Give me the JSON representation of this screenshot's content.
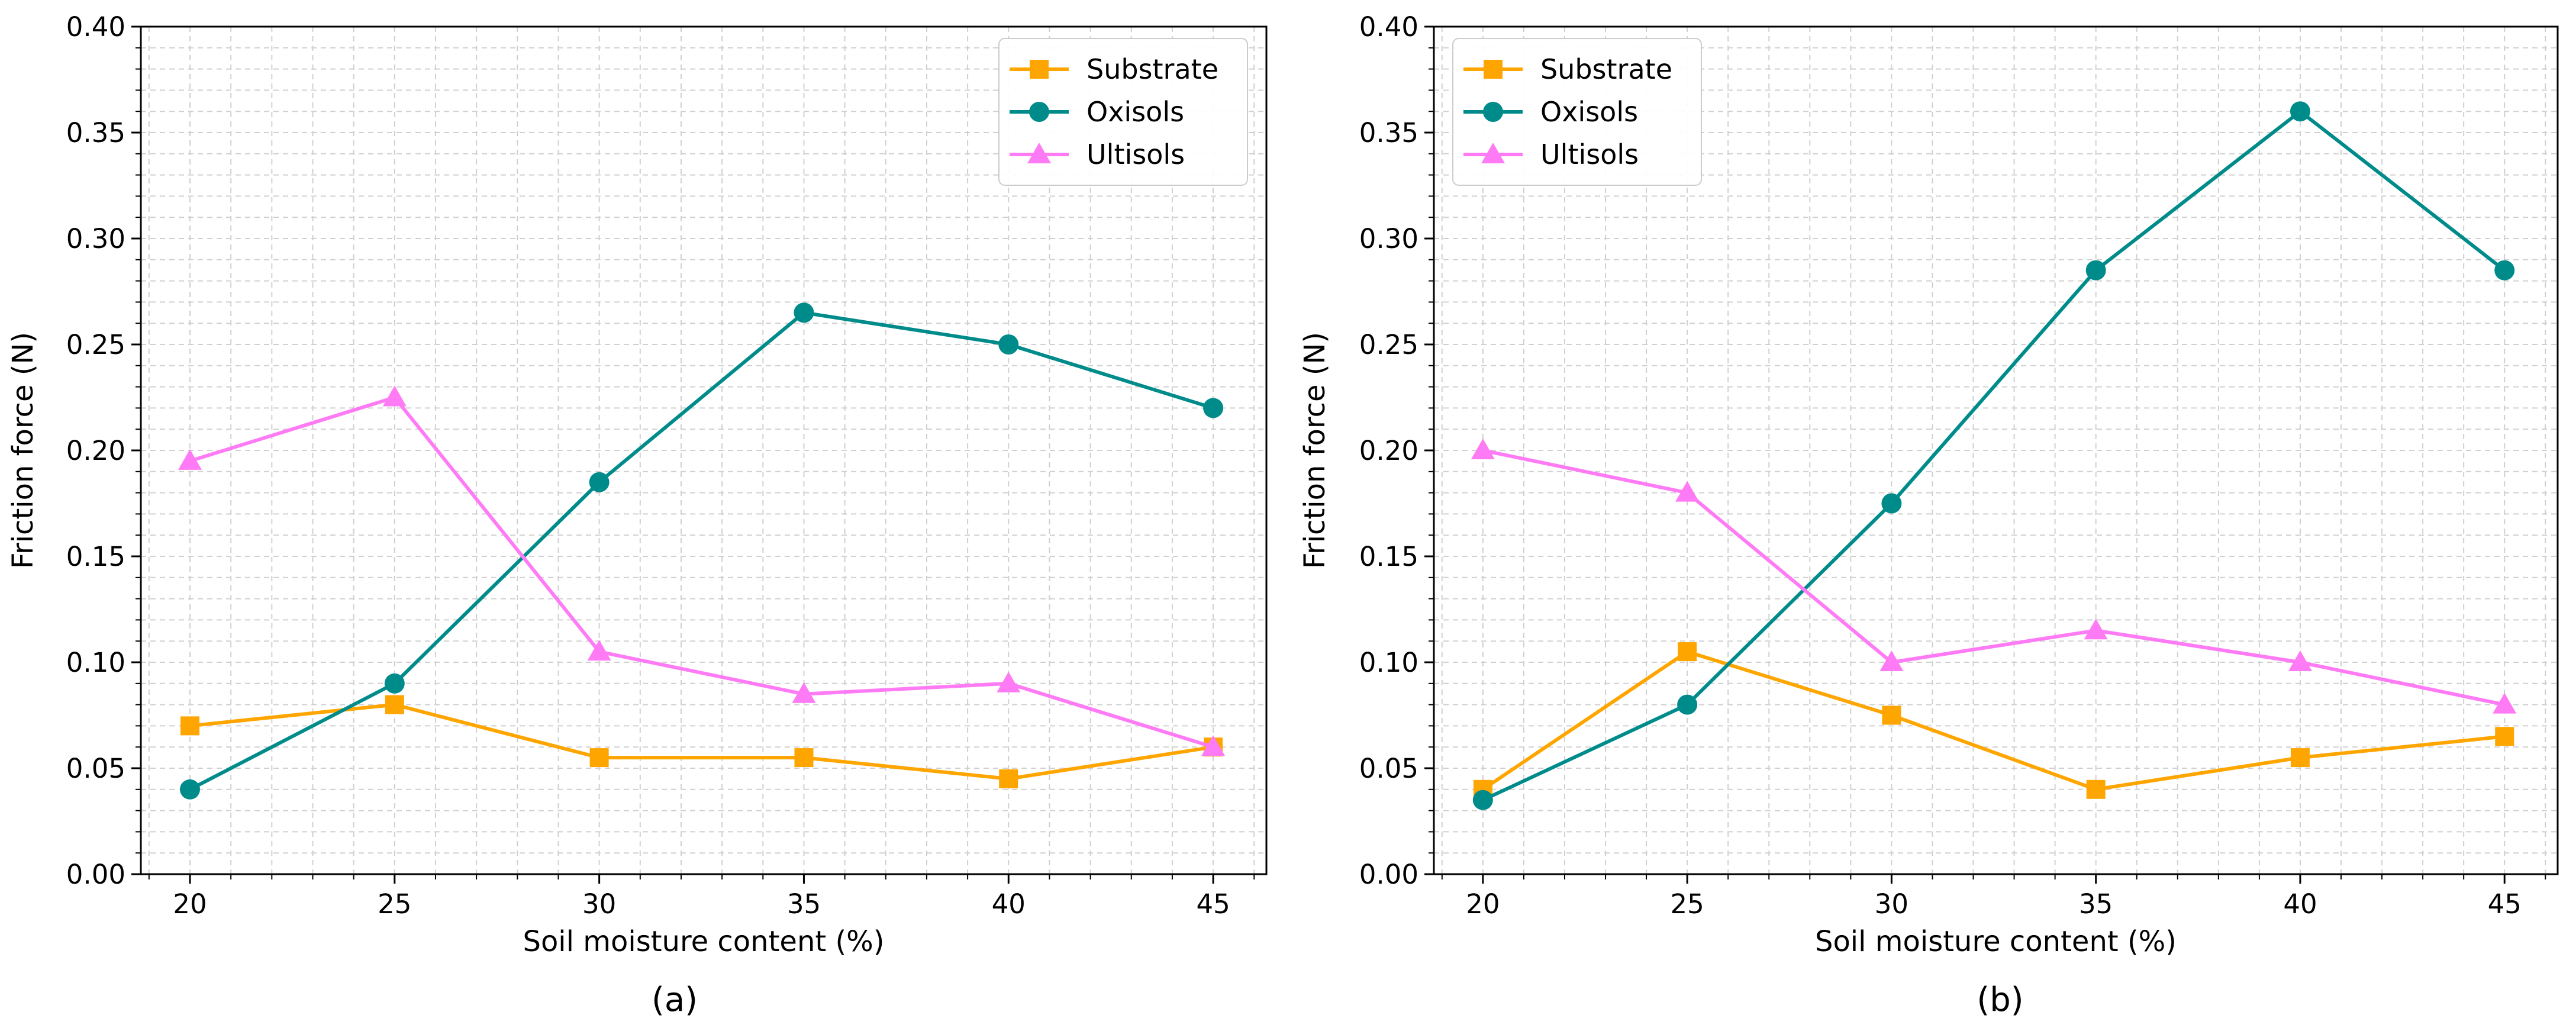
{
  "chart_data": [
    {
      "type": "line",
      "caption": "(a)",
      "xlabel": "Soil moisture content (%)",
      "ylabel": "Friction force (N)",
      "x": [
        20,
        25,
        30,
        35,
        40,
        45
      ],
      "xlim": [
        18.8,
        46.3
      ],
      "ylim": [
        0,
        0.4
      ],
      "xticks": [
        "20",
        "25",
        "30",
        "35",
        "40",
        "45"
      ],
      "yticks": [
        "0.00",
        "0.05",
        "0.10",
        "0.15",
        "0.20",
        "0.25",
        "0.30",
        "0.35",
        "0.40"
      ],
      "grid": true,
      "legend_position": "top-right",
      "series": [
        {
          "name": "Substrate",
          "marker": "square",
          "color": "#FFA500",
          "values": [
            0.07,
            0.08,
            0.055,
            0.055,
            0.045,
            0.06
          ]
        },
        {
          "name": "Oxisols",
          "marker": "circle",
          "color": "#008B8B",
          "values": [
            0.04,
            0.09,
            0.185,
            0.265,
            0.25,
            0.22
          ]
        },
        {
          "name": "Ultisols",
          "marker": "triangle",
          "color": "#FF7BF5",
          "values": [
            0.195,
            0.225,
            0.105,
            0.085,
            0.09,
            0.06
          ]
        }
      ]
    },
    {
      "type": "line",
      "caption": "(b)",
      "xlabel": "Soil moisture content (%)",
      "ylabel": "Friction force (N)",
      "x": [
        20,
        25,
        30,
        35,
        40,
        45
      ],
      "xlim": [
        18.8,
        46.3
      ],
      "ylim": [
        0,
        0.4
      ],
      "xticks": [
        "20",
        "25",
        "30",
        "35",
        "40",
        "45"
      ],
      "yticks": [
        "0.00",
        "0.05",
        "0.10",
        "0.15",
        "0.20",
        "0.25",
        "0.30",
        "0.35",
        "0.40"
      ],
      "grid": true,
      "legend_position": "top-left",
      "series": [
        {
          "name": "Substrate",
          "marker": "square",
          "color": "#FFA500",
          "values": [
            0.04,
            0.105,
            0.075,
            0.04,
            0.055,
            0.065
          ]
        },
        {
          "name": "Oxisols",
          "marker": "circle",
          "color": "#008B8B",
          "values": [
            0.035,
            0.08,
            0.175,
            0.285,
            0.36,
            0.285
          ]
        },
        {
          "name": "Ultisols",
          "marker": "triangle",
          "color": "#FF7BF5",
          "values": [
            0.2,
            0.18,
            0.1,
            0.115,
            0.1,
            0.08
          ]
        }
      ]
    }
  ]
}
